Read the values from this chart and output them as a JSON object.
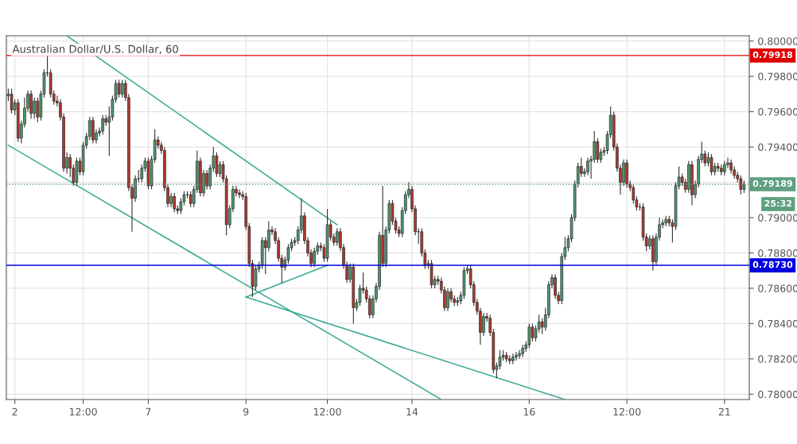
{
  "chart_data": {
    "type": "candlestick",
    "title": "Australian Dollar/U.S. Dollar, 60",
    "categories": [
      null,
      null,
      "2",
      null,
      null,
      null,
      null,
      null,
      null,
      null,
      null,
      null,
      null,
      null,
      null,
      null,
      null,
      null,
      null,
      null,
      null,
      null,
      null,
      "12:00",
      null,
      null,
      null,
      null,
      null,
      null,
      null,
      null,
      null,
      null,
      null,
      null,
      null,
      null,
      null,
      null,
      null,
      null,
      null,
      "7",
      null,
      null,
      null,
      null,
      null,
      null,
      null,
      null,
      null,
      null,
      null,
      null,
      null,
      null,
      null,
      null,
      null,
      null,
      null,
      null,
      null,
      null,
      null,
      null,
      null,
      null,
      null,
      null,
      null,
      "9",
      null,
      null,
      null,
      null,
      null,
      null,
      null,
      null,
      null,
      null,
      null,
      null,
      null,
      null,
      null,
      null,
      null,
      null,
      null,
      null,
      null,
      null,
      null,
      null,
      "12:00",
      null,
      null,
      null,
      null,
      null,
      null,
      null,
      null,
      null,
      null,
      null,
      null,
      null,
      null,
      null,
      null,
      null,
      null,
      null,
      null,
      null,
      null,
      null,
      null,
      null,
      "14",
      null,
      null,
      null,
      null,
      null,
      null,
      null,
      null,
      null,
      null,
      null,
      null,
      null,
      null,
      null,
      null,
      null,
      null,
      null,
      null,
      null,
      null,
      null,
      null,
      null,
      null,
      null,
      null,
      null,
      null,
      null,
      null,
      null,
      null,
      null,
      "16",
      null,
      null,
      null,
      null,
      null,
      null,
      null,
      null,
      null,
      null,
      null,
      null,
      null,
      null,
      null,
      null,
      null,
      null,
      null,
      null,
      null,
      null,
      null,
      null,
      null,
      null,
      null,
      null,
      null,
      "12:00",
      null,
      null,
      null,
      null,
      null,
      null,
      null,
      null,
      null,
      null,
      null,
      null,
      null,
      null,
      null,
      null,
      null,
      null,
      null,
      null,
      null,
      null,
      null,
      null,
      null,
      null,
      null,
      null,
      null,
      "21",
      null,
      null,
      null,
      null,
      null,
      null
    ],
    "ohlc": [
      [
        0.7969,
        0.7973,
        0.7966,
        0.797
      ],
      [
        0.797,
        0.7973,
        0.7959,
        0.7961
      ],
      [
        0.7961,
        0.7967,
        0.7958,
        0.7965
      ],
      [
        0.7965,
        0.7967,
        0.7943,
        0.7945
      ],
      [
        0.7945,
        0.7955,
        0.7942,
        0.7953
      ],
      [
        0.7953,
        0.7968,
        0.7951,
        0.7962
      ],
      [
        0.7962,
        0.7972,
        0.796,
        0.797
      ],
      [
        0.797,
        0.7972,
        0.7956,
        0.7959
      ],
      [
        0.7959,
        0.7968,
        0.7956,
        0.7966
      ],
      [
        0.7966,
        0.7968,
        0.7954,
        0.7957
      ],
      [
        0.7957,
        0.7972,
        0.7955,
        0.797
      ],
      [
        0.797,
        0.7984,
        0.7968,
        0.7982
      ],
      [
        0.7982,
        0.7992,
        0.798,
        0.7982
      ],
      [
        0.7982,
        0.7984,
        0.7968,
        0.797
      ],
      [
        0.797,
        0.7972,
        0.7964,
        0.7966
      ],
      [
        0.7966,
        0.7969,
        0.7963,
        0.7965
      ],
      [
        0.7965,
        0.7967,
        0.7955,
        0.7957
      ],
      [
        0.7957,
        0.7959,
        0.7926,
        0.7928
      ],
      [
        0.7928,
        0.7937,
        0.7925,
        0.7934
      ],
      [
        0.7934,
        0.7936,
        0.7923,
        0.7928
      ],
      [
        0.7928,
        0.793,
        0.7918,
        0.792
      ],
      [
        0.792,
        0.7934,
        0.7918,
        0.7932
      ],
      [
        0.7932,
        0.7934,
        0.7924,
        0.7926
      ],
      [
        0.7926,
        0.7943,
        0.7924,
        0.7941
      ],
      [
        0.7941,
        0.7948,
        0.7939,
        0.7946
      ],
      [
        0.7946,
        0.7957,
        0.7944,
        0.7955
      ],
      [
        0.7955,
        0.7957,
        0.7942,
        0.7944
      ],
      [
        0.7944,
        0.795,
        0.7942,
        0.7948
      ],
      [
        0.7948,
        0.7951,
        0.7946,
        0.7949
      ],
      [
        0.7949,
        0.7958,
        0.7947,
        0.7956
      ],
      [
        0.7956,
        0.7958,
        0.7952,
        0.7954
      ],
      [
        0.7954,
        0.7963,
        0.7935,
        0.7957
      ],
      [
        0.7957,
        0.7969,
        0.7955,
        0.7967
      ],
      [
        0.7967,
        0.7978,
        0.7965,
        0.7976
      ],
      [
        0.7976,
        0.7978,
        0.7968,
        0.797
      ],
      [
        0.797,
        0.7978,
        0.7968,
        0.7976
      ],
      [
        0.7976,
        0.7978,
        0.7966,
        0.7968
      ],
      [
        0.7968,
        0.797,
        0.7915,
        0.7917
      ],
      [
        0.7917,
        0.7919,
        0.7892,
        0.7911
      ],
      [
        0.7911,
        0.7924,
        0.7909,
        0.7922
      ],
      [
        0.7922,
        0.7927,
        0.792,
        0.7922
      ],
      [
        0.7922,
        0.793,
        0.792,
        0.7928
      ],
      [
        0.7928,
        0.7934,
        0.7926,
        0.7932
      ],
      [
        0.7932,
        0.7934,
        0.7916,
        0.7918
      ],
      [
        0.7918,
        0.7935,
        0.7916,
        0.7933
      ],
      [
        0.7933,
        0.795,
        0.7931,
        0.7944
      ],
      [
        0.7944,
        0.7946,
        0.7939,
        0.7941
      ],
      [
        0.7941,
        0.7943,
        0.7936,
        0.7938
      ],
      [
        0.7938,
        0.794,
        0.7915,
        0.7917
      ],
      [
        0.7917,
        0.7919,
        0.7906,
        0.7908
      ],
      [
        0.7908,
        0.7914,
        0.7906,
        0.7912
      ],
      [
        0.7912,
        0.7914,
        0.7903,
        0.7905
      ],
      [
        0.7905,
        0.7907,
        0.7902,
        0.7904
      ],
      [
        0.7904,
        0.7911,
        0.7902,
        0.7909
      ],
      [
        0.7909,
        0.7915,
        0.7907,
        0.7913
      ],
      [
        0.7913,
        0.7915,
        0.7911,
        0.7913
      ],
      [
        0.7913,
        0.7915,
        0.7906,
        0.7908
      ],
      [
        0.7908,
        0.7918,
        0.7906,
        0.7916
      ],
      [
        0.7916,
        0.7938,
        0.7914,
        0.7932
      ],
      [
        0.7932,
        0.7934,
        0.7912,
        0.7914
      ],
      [
        0.7914,
        0.7927,
        0.7912,
        0.7925
      ],
      [
        0.7925,
        0.7927,
        0.7916,
        0.7918
      ],
      [
        0.7918,
        0.793,
        0.7916,
        0.7928
      ],
      [
        0.7928,
        0.794,
        0.7926,
        0.7935
      ],
      [
        0.7935,
        0.7937,
        0.7923,
        0.7925
      ],
      [
        0.7925,
        0.7932,
        0.7923,
        0.793
      ],
      [
        0.793,
        0.7932,
        0.792,
        0.7922
      ],
      [
        0.7922,
        0.7924,
        0.789,
        0.7896
      ],
      [
        0.7896,
        0.7907,
        0.7894,
        0.7905
      ],
      [
        0.7905,
        0.7918,
        0.7903,
        0.7916
      ],
      [
        0.7916,
        0.7918,
        0.7912,
        0.7914
      ],
      [
        0.7914,
        0.7916,
        0.7911,
        0.7913
      ],
      [
        0.7913,
        0.7915,
        0.791,
        0.7912
      ],
      [
        0.7912,
        0.7914,
        0.7893,
        0.7895
      ],
      [
        0.7895,
        0.7897,
        0.7872,
        0.7874
      ],
      [
        0.7874,
        0.7876,
        0.7855,
        0.7861
      ],
      [
        0.7861,
        0.7873,
        0.7859,
        0.7871
      ],
      [
        0.7871,
        0.7875,
        0.7869,
        0.7873
      ],
      [
        0.7873,
        0.7889,
        0.7871,
        0.7887
      ],
      [
        0.7887,
        0.7889,
        0.7868,
        0.7883
      ],
      [
        0.7883,
        0.7898,
        0.7881,
        0.7893
      ],
      [
        0.7893,
        0.7895,
        0.789,
        0.7892
      ],
      [
        0.7892,
        0.7894,
        0.7885,
        0.7887
      ],
      [
        0.7887,
        0.7889,
        0.7875,
        0.7877
      ],
      [
        0.7877,
        0.7879,
        0.7863,
        0.7872
      ],
      [
        0.7872,
        0.7878,
        0.787,
        0.7876
      ],
      [
        0.7876,
        0.7885,
        0.7874,
        0.7883
      ],
      [
        0.7883,
        0.7888,
        0.7881,
        0.7886
      ],
      [
        0.7886,
        0.7889,
        0.7884,
        0.7887
      ],
      [
        0.7887,
        0.7895,
        0.7885,
        0.7893
      ],
      [
        0.7893,
        0.7911,
        0.7891,
        0.7901
      ],
      [
        0.7901,
        0.7903,
        0.7885,
        0.7887
      ],
      [
        0.7887,
        0.7889,
        0.7878,
        0.788
      ],
      [
        0.788,
        0.7882,
        0.7872,
        0.7874
      ],
      [
        0.7874,
        0.7883,
        0.7872,
        0.7881
      ],
      [
        0.7881,
        0.7886,
        0.7879,
        0.7884
      ],
      [
        0.7884,
        0.7886,
        0.7881,
        0.7883
      ],
      [
        0.7883,
        0.7885,
        0.7875,
        0.7877
      ],
      [
        0.7877,
        0.7905,
        0.7875,
        0.7896
      ],
      [
        0.7896,
        0.7898,
        0.7887,
        0.7889
      ],
      [
        0.7889,
        0.7891,
        0.7884,
        0.7886
      ],
      [
        0.7886,
        0.7894,
        0.7884,
        0.7892
      ],
      [
        0.7892,
        0.7894,
        0.7881,
        0.7883
      ],
      [
        0.7883,
        0.7885,
        0.7871,
        0.7873
      ],
      [
        0.7873,
        0.7875,
        0.7863,
        0.7865
      ],
      [
        0.7865,
        0.7874,
        0.7863,
        0.7872
      ],
      [
        0.7872,
        0.7874,
        0.784,
        0.7849
      ],
      [
        0.7849,
        0.7854,
        0.7847,
        0.7852
      ],
      [
        0.7852,
        0.7862,
        0.785,
        0.786
      ],
      [
        0.786,
        0.7869,
        0.7857,
        0.7859
      ],
      [
        0.7859,
        0.7861,
        0.7852,
        0.7854
      ],
      [
        0.7854,
        0.7856,
        0.7843,
        0.7845
      ],
      [
        0.7845,
        0.7856,
        0.7843,
        0.7854
      ],
      [
        0.7854,
        0.7863,
        0.7852,
        0.7861
      ],
      [
        0.7861,
        0.7892,
        0.7859,
        0.789
      ],
      [
        0.789,
        0.7918,
        0.7872,
        0.7874
      ],
      [
        0.7874,
        0.7895,
        0.7872,
        0.7893
      ],
      [
        0.7893,
        0.791,
        0.7891,
        0.7908
      ],
      [
        0.7908,
        0.791,
        0.7896,
        0.7898
      ],
      [
        0.7898,
        0.79,
        0.7891,
        0.7893
      ],
      [
        0.7893,
        0.7895,
        0.7889,
        0.7891
      ],
      [
        0.7891,
        0.7906,
        0.7889,
        0.7904
      ],
      [
        0.7904,
        0.7915,
        0.7902,
        0.7913
      ],
      [
        0.7913,
        0.792,
        0.7911,
        0.7916
      ],
      [
        0.7916,
        0.7918,
        0.7903,
        0.7905
      ],
      [
        0.7905,
        0.7907,
        0.789,
        0.7892
      ],
      [
        0.7892,
        0.7894,
        0.7885,
        0.7892
      ],
      [
        0.7892,
        0.7894,
        0.7878,
        0.788
      ],
      [
        0.788,
        0.7882,
        0.7871,
        0.7873
      ],
      [
        0.7873,
        0.7876,
        0.7871,
        0.7874
      ],
      [
        0.7874,
        0.7876,
        0.786,
        0.7862
      ],
      [
        0.7862,
        0.7867,
        0.786,
        0.7865
      ],
      [
        0.7865,
        0.7867,
        0.7862,
        0.7864
      ],
      [
        0.7864,
        0.7866,
        0.7857,
        0.7859
      ],
      [
        0.7859,
        0.7861,
        0.7847,
        0.7849
      ],
      [
        0.7849,
        0.786,
        0.7847,
        0.7858
      ],
      [
        0.7858,
        0.786,
        0.7852,
        0.7854
      ],
      [
        0.7854,
        0.7856,
        0.785,
        0.7852
      ],
      [
        0.7852,
        0.7855,
        0.785,
        0.7853
      ],
      [
        0.7853,
        0.7858,
        0.7851,
        0.7856
      ],
      [
        0.7856,
        0.7872,
        0.7854,
        0.787
      ],
      [
        0.787,
        0.7873,
        0.7868,
        0.7871
      ],
      [
        0.7871,
        0.7873,
        0.786,
        0.7862
      ],
      [
        0.7862,
        0.7864,
        0.785,
        0.7852
      ],
      [
        0.7852,
        0.7854,
        0.7845,
        0.7847
      ],
      [
        0.7847,
        0.7849,
        0.7828,
        0.7835
      ],
      [
        0.7835,
        0.7846,
        0.7833,
        0.7844
      ],
      [
        0.7844,
        0.7846,
        0.7841,
        0.7843
      ],
      [
        0.7843,
        0.7845,
        0.7833,
        0.7835
      ],
      [
        0.7835,
        0.7837,
        0.7812,
        0.7814
      ],
      [
        0.7814,
        0.7818,
        0.7809,
        0.7816
      ],
      [
        0.7816,
        0.7825,
        0.7814,
        0.7821
      ],
      [
        0.7821,
        0.7825,
        0.7819,
        0.7822
      ],
      [
        0.7822,
        0.7824,
        0.7818,
        0.782
      ],
      [
        0.782,
        0.7822,
        0.7817,
        0.7819
      ],
      [
        0.7819,
        0.7823,
        0.7817,
        0.7821
      ],
      [
        0.7821,
        0.7824,
        0.7819,
        0.7822
      ],
      [
        0.7822,
        0.7825,
        0.782,
        0.7823
      ],
      [
        0.7823,
        0.7828,
        0.7821,
        0.7826
      ],
      [
        0.7826,
        0.783,
        0.7824,
        0.7828
      ],
      [
        0.7828,
        0.784,
        0.7826,
        0.7838
      ],
      [
        0.7838,
        0.784,
        0.783,
        0.7832
      ],
      [
        0.7832,
        0.7839,
        0.783,
        0.7837
      ],
      [
        0.7837,
        0.7845,
        0.7835,
        0.7841
      ],
      [
        0.7841,
        0.7843,
        0.7834,
        0.7838
      ],
      [
        0.7838,
        0.7849,
        0.7836,
        0.7845
      ],
      [
        0.7845,
        0.7864,
        0.7843,
        0.7862
      ],
      [
        0.7862,
        0.7868,
        0.786,
        0.7866
      ],
      [
        0.7866,
        0.7868,
        0.7854,
        0.7856
      ],
      [
        0.7856,
        0.7858,
        0.7851,
        0.7853
      ],
      [
        0.7853,
        0.788,
        0.7851,
        0.7878
      ],
      [
        0.7878,
        0.7889,
        0.7876,
        0.7883
      ],
      [
        0.7883,
        0.789,
        0.7881,
        0.7888
      ],
      [
        0.7888,
        0.7902,
        0.7886,
        0.79
      ],
      [
        0.79,
        0.7921,
        0.7898,
        0.7919
      ],
      [
        0.7919,
        0.7931,
        0.7917,
        0.7929
      ],
      [
        0.7929,
        0.7934,
        0.7923,
        0.7925
      ],
      [
        0.7925,
        0.7928,
        0.7923,
        0.7926
      ],
      [
        0.7926,
        0.7934,
        0.7924,
        0.7932
      ],
      [
        0.7932,
        0.7935,
        0.7922,
        0.7933
      ],
      [
        0.7933,
        0.7949,
        0.7931,
        0.7943
      ],
      [
        0.7943,
        0.7945,
        0.7931,
        0.7933
      ],
      [
        0.7933,
        0.7939,
        0.7931,
        0.7937
      ],
      [
        0.7937,
        0.794,
        0.7935,
        0.7938
      ],
      [
        0.7938,
        0.7949,
        0.7936,
        0.7947
      ],
      [
        0.7947,
        0.7963,
        0.7945,
        0.7958
      ],
      [
        0.7958,
        0.796,
        0.7938,
        0.794
      ],
      [
        0.794,
        0.7942,
        0.7926,
        0.7928
      ],
      [
        0.7928,
        0.793,
        0.7913,
        0.792
      ],
      [
        0.792,
        0.7933,
        0.7918,
        0.7931
      ],
      [
        0.7931,
        0.7933,
        0.7917,
        0.7919
      ],
      [
        0.7919,
        0.7921,
        0.7915,
        0.7917
      ],
      [
        0.7917,
        0.7919,
        0.7908,
        0.791
      ],
      [
        0.791,
        0.7912,
        0.7904,
        0.7906
      ],
      [
        0.7906,
        0.7908,
        0.7904,
        0.7906
      ],
      [
        0.7906,
        0.7908,
        0.7887,
        0.7889
      ],
      [
        0.7889,
        0.7891,
        0.7881,
        0.7884
      ],
      [
        0.7884,
        0.789,
        0.7882,
        0.7888
      ],
      [
        0.7888,
        0.789,
        0.787,
        0.7875
      ],
      [
        0.7875,
        0.7891,
        0.7873,
        0.7889
      ],
      [
        0.7889,
        0.79,
        0.7887,
        0.7896
      ],
      [
        0.7896,
        0.7899,
        0.7894,
        0.7897
      ],
      [
        0.7897,
        0.7901,
        0.7895,
        0.7899
      ],
      [
        0.7899,
        0.7901,
        0.7895,
        0.7897
      ],
      [
        0.7897,
        0.7899,
        0.7886,
        0.7895
      ],
      [
        0.7895,
        0.792,
        0.7893,
        0.7918
      ],
      [
        0.7918,
        0.7929,
        0.7916,
        0.7923
      ],
      [
        0.7923,
        0.7925,
        0.7918,
        0.792
      ],
      [
        0.792,
        0.7922,
        0.7914,
        0.7916
      ],
      [
        0.7916,
        0.7932,
        0.7914,
        0.793
      ],
      [
        0.793,
        0.7932,
        0.7907,
        0.7913
      ],
      [
        0.7913,
        0.7921,
        0.7911,
        0.7919
      ],
      [
        0.7919,
        0.7935,
        0.7917,
        0.7933
      ],
      [
        0.7933,
        0.7943,
        0.7931,
        0.7936
      ],
      [
        0.7936,
        0.7938,
        0.7929,
        0.7931
      ],
      [
        0.7931,
        0.7937,
        0.7929,
        0.7934
      ],
      [
        0.7934,
        0.7936,
        0.7924,
        0.7926
      ],
      [
        0.7926,
        0.7931,
        0.7924,
        0.7929
      ],
      [
        0.7929,
        0.7931,
        0.7926,
        0.7928
      ],
      [
        0.7928,
        0.793,
        0.7924,
        0.7926
      ],
      [
        0.7926,
        0.7932,
        0.7924,
        0.793
      ],
      [
        0.793,
        0.7934,
        0.7928,
        0.7931
      ],
      [
        0.7931,
        0.7933,
        0.7925,
        0.7927
      ],
      [
        0.7927,
        0.7929,
        0.7922,
        0.7924
      ],
      [
        0.7924,
        0.7926,
        0.792,
        0.7922
      ],
      [
        0.7922,
        0.7924,
        0.7913,
        0.7916
      ],
      [
        0.7916,
        0.7921,
        0.7914,
        0.7919
      ]
    ],
    "series": [
      {
        "type": "line",
        "color": "#3aa893",
        "values": [
          null,
          null,
          null,
          null,
          null,
          null,
          null,
          null,
          null,
          null,
          null,
          null,
          null,
          null,
          null,
          null,
          null,
          null,
          0.8003,
          null,
          null,
          null,
          null,
          null,
          null,
          null,
          null,
          null,
          null,
          null,
          null,
          null,
          null,
          null,
          null,
          null,
          null,
          null,
          null,
          null,
          null,
          null,
          null,
          null,
          null,
          null,
          null,
          null,
          null,
          null,
          null,
          null,
          null,
          null,
          null,
          null,
          null,
          null,
          null,
          null,
          null,
          null,
          null,
          null,
          null,
          null,
          null,
          null,
          null,
          null,
          null,
          null,
          null,
          null,
          null,
          null,
          null,
          null,
          null,
          null,
          null,
          null,
          null,
          null,
          null,
          null,
          null,
          null,
          null,
          null,
          null,
          null,
          null,
          null,
          null,
          null,
          null,
          null,
          null,
          null,
          null,
          0.7896,
          null,
          null,
          null,
          null,
          null,
          null,
          null,
          null,
          null,
          null,
          null,
          null,
          null,
          null,
          null,
          null,
          null,
          null,
          null,
          null,
          null,
          null,
          null,
          null,
          null,
          null,
          null,
          null,
          null,
          null,
          null,
          null,
          null,
          null,
          null,
          null,
          null,
          null,
          null,
          null,
          null,
          null,
          null,
          null,
          null,
          null,
          null,
          null,
          null,
          null,
          null,
          null,
          null,
          null,
          null,
          null,
          null,
          null,
          null,
          null,
          null,
          null,
          null,
          null,
          null,
          null,
          null,
          null,
          null,
          null,
          null,
          null,
          null,
          null,
          null,
          null,
          null,
          null,
          null,
          null,
          null,
          null,
          null,
          null,
          null,
          null,
          null,
          null,
          null,
          null,
          null,
          null,
          null,
          null,
          null,
          null,
          null,
          null,
          null,
          null,
          null,
          null,
          null,
          null,
          null,
          null,
          null,
          null,
          null,
          null,
          null,
          null,
          null,
          null,
          null,
          null,
          null,
          null,
          null,
          null,
          null,
          null,
          null,
          null,
          null
        ]
      },
      {
        "type": "line",
        "color": "#3aa893",
        "values": [
          0.7941,
          null,
          null,
          null,
          null,
          null,
          null,
          null,
          null,
          null,
          null,
          null,
          null,
          null,
          null,
          null,
          null,
          null,
          null,
          null,
          null,
          null,
          null,
          null,
          null,
          null,
          null,
          null,
          null,
          null,
          null,
          null,
          null,
          null,
          null,
          null,
          null,
          null,
          null,
          null,
          null,
          null,
          null,
          null,
          null,
          null,
          null,
          null,
          null,
          null,
          null,
          null,
          null,
          null,
          null,
          null,
          null,
          null,
          null,
          null,
          null,
          null,
          null,
          null,
          null,
          null,
          null,
          null,
          null,
          null,
          null,
          null,
          null,
          null,
          null,
          null,
          null,
          null,
          null,
          null,
          null,
          null,
          null,
          null,
          null,
          null,
          null,
          null,
          null,
          null,
          null,
          null,
          null,
          null,
          null,
          null,
          null,
          null,
          null,
          null,
          null,
          null,
          null,
          null,
          null,
          null,
          null,
          null,
          null,
          null,
          null,
          null,
          null,
          null,
          null,
          null,
          null,
          null,
          null,
          null,
          null,
          null,
          null,
          null,
          null,
          null,
          null,
          null,
          null,
          null,
          null,
          null,
          null,
          0.7797,
          null,
          null,
          null,
          null,
          null,
          null,
          null,
          null,
          null,
          null,
          null,
          null,
          null,
          null,
          null,
          null,
          null,
          null,
          null,
          null,
          null,
          null,
          null,
          null,
          null,
          null,
          null,
          null,
          null,
          null,
          null,
          null,
          null,
          null,
          null,
          null,
          null,
          null,
          null,
          null,
          null,
          null,
          null,
          null,
          null,
          null,
          null,
          null,
          null,
          null,
          null,
          null,
          null,
          null,
          null,
          null,
          null,
          null,
          null,
          null,
          null,
          null,
          null,
          null,
          null,
          null,
          null,
          null,
          null,
          null,
          null,
          null,
          null,
          null,
          null,
          null,
          null,
          null,
          null,
          null,
          null,
          null,
          null,
          null,
          null,
          null,
          null,
          null,
          null,
          null,
          null,
          null,
          null
        ]
      },
      {
        "type": "line",
        "color": "#3aa893",
        "values": [
          null,
          null,
          null,
          null,
          null,
          null,
          null,
          null,
          null,
          null,
          null,
          null,
          null,
          null,
          null,
          null,
          null,
          null,
          null,
          null,
          null,
          null,
          null,
          null,
          null,
          null,
          null,
          null,
          null,
          null,
          null,
          null,
          null,
          null,
          null,
          null,
          null,
          null,
          null,
          null,
          null,
          null,
          null,
          null,
          null,
          null,
          null,
          null,
          null,
          null,
          null,
          null,
          null,
          null,
          null,
          null,
          null,
          null,
          null,
          null,
          null,
          null,
          null,
          null,
          null,
          null,
          null,
          null,
          null,
          null,
          null,
          null,
          null,
          0.7855,
          null,
          null,
          null,
          null,
          null,
          null,
          null,
          null,
          null,
          null,
          null,
          null,
          null,
          null,
          null,
          null,
          null,
          null,
          null,
          null,
          null,
          null,
          null,
          null,
          null,
          null,
          null,
          null,
          null,
          null,
          null,
          null,
          null,
          null,
          null,
          null,
          null,
          null,
          null,
          null,
          null,
          null,
          null,
          null,
          null,
          null,
          null,
          null,
          null,
          null,
          null,
          null,
          null,
          null,
          null,
          null,
          null,
          null,
          null,
          null,
          null,
          null,
          null,
          null,
          null,
          null,
          null,
          null,
          null,
          null,
          null,
          null,
          null,
          null,
          null,
          null,
          null,
          null,
          null,
          null,
          null,
          null,
          null,
          null,
          null,
          null,
          null,
          null,
          null,
          null,
          null,
          null,
          null,
          null,
          null,
          null,
          null,
          0.7797,
          null,
          null,
          null,
          null,
          null,
          null,
          null,
          null,
          null,
          null,
          null,
          null,
          null,
          null,
          null,
          null,
          null,
          null,
          null,
          null,
          null,
          null,
          null,
          null,
          null,
          null,
          null,
          null,
          null,
          null,
          null,
          null,
          null,
          null,
          null,
          null,
          null,
          null,
          null,
          null,
          null,
          null,
          null,
          null,
          null,
          null,
          null,
          null,
          null,
          null,
          null,
          null,
          null,
          null,
          null
        ]
      },
      {
        "type": "line",
        "color": "#3aa893",
        "values": [
          null,
          null,
          null,
          null,
          null,
          null,
          null,
          null,
          null,
          null,
          null,
          null,
          null,
          null,
          null,
          null,
          null,
          null,
          null,
          null,
          null,
          null,
          null,
          null,
          null,
          null,
          null,
          null,
          null,
          null,
          null,
          null,
          null,
          null,
          null,
          null,
          null,
          null,
          null,
          null,
          null,
          null,
          null,
          null,
          null,
          null,
          null,
          null,
          null,
          null,
          null,
          null,
          null,
          null,
          null,
          null,
          null,
          null,
          null,
          null,
          null,
          null,
          null,
          null,
          null,
          null,
          null,
          null,
          null,
          null,
          null,
          null,
          null,
          0.7855,
          null,
          null,
          null,
          null,
          null,
          null,
          null,
          null,
          null,
          null,
          null,
          null,
          null,
          null,
          null,
          null,
          null,
          null,
          null,
          null,
          null,
          null,
          null,
          null,
          0.7873,
          null,
          null,
          null,
          null,
          null,
          null,
          null,
          null,
          null,
          null,
          null,
          null,
          null,
          null,
          null,
          null,
          null,
          null,
          null,
          null,
          null,
          null,
          null,
          null,
          null,
          null,
          null,
          null,
          null,
          null,
          null,
          null,
          null,
          null,
          null,
          null,
          null,
          null,
          null,
          null,
          null,
          null,
          null,
          null,
          null,
          null,
          null,
          null,
          null,
          null,
          null,
          null,
          null,
          null,
          null,
          null,
          null,
          null,
          null,
          null,
          null,
          null,
          null,
          null,
          null,
          null,
          null,
          null,
          null,
          null,
          null,
          null,
          null,
          null,
          null,
          null,
          null,
          null,
          null,
          null,
          null,
          null,
          null,
          null,
          null,
          null,
          null,
          null,
          null,
          null,
          null,
          null,
          null,
          null,
          null,
          null,
          null,
          null,
          null,
          null,
          null,
          null,
          null,
          null,
          null,
          null,
          null,
          null,
          null,
          null,
          null,
          null,
          null,
          null,
          null,
          null,
          null,
          null,
          null,
          null,
          null,
          null,
          null,
          null,
          null,
          null,
          null,
          null
        ]
      }
    ],
    "ylim": [
      0.7797,
      0.8003
    ],
    "yticks": [
      {
        "value": 0.78,
        "label": "0.78000"
      },
      {
        "value": 0.782,
        "label": "0.78200"
      },
      {
        "value": 0.784,
        "label": "0.78400"
      },
      {
        "value": 0.786,
        "label": "0.78600"
      },
      {
        "value": 0.788,
        "label": "0.78800"
      },
      {
        "value": 0.79,
        "label": "0.79000"
      },
      {
        "value": 0.792,
        "label": null
      },
      {
        "value": 0.794,
        "label": "0.79400"
      },
      {
        "value": 0.796,
        "label": "0.79600"
      },
      {
        "value": 0.798,
        "label": "0.79800"
      },
      {
        "value": 0.8,
        "label": "0.80000"
      }
    ],
    "ref_lines": [
      {
        "axis": "y",
        "value": 0.79918,
        "label": "0.79918",
        "color": "#e00000",
        "line_style": "solid"
      },
      {
        "axis": "y",
        "value": 0.7873,
        "label": "0.78730",
        "color": "#0000e0",
        "line_style": "solid"
      },
      {
        "axis": "y",
        "value": 0.79189,
        "label": "0.79189",
        "color": "#5f9f80",
        "line_style": "dotted"
      }
    ],
    "annotations": [
      "25:32"
    ],
    "grid": true
  }
}
